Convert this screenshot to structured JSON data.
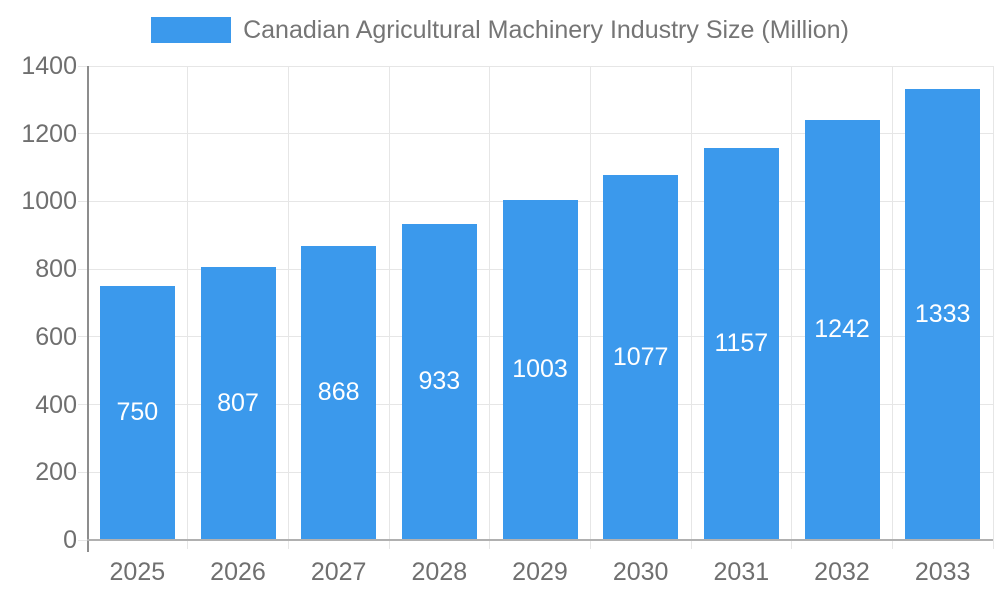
{
  "legend": {
    "label": "Canadian Agricultural Machinery Industry Size (Million)",
    "swatch_icon": "legend-color-swatch"
  },
  "chart_data": {
    "type": "bar",
    "title": "Canadian Agricultural Machinery Industry Size (Million)",
    "categories": [
      "2025",
      "2026",
      "2027",
      "2028",
      "2029",
      "2030",
      "2031",
      "2032",
      "2033"
    ],
    "values": [
      750,
      807,
      868,
      933,
      1003,
      1077,
      1157,
      1242,
      1333
    ],
    "series": [
      {
        "name": "Canadian Agricultural Machinery Industry Size (Million)",
        "values": [
          750,
          807,
          868,
          933,
          1003,
          1077,
          1157,
          1242,
          1333
        ]
      }
    ],
    "xlabel": "",
    "ylabel": "",
    "ylim": [
      0,
      1400
    ],
    "yticks": [
      0,
      200,
      400,
      600,
      800,
      1000,
      1200,
      1400
    ],
    "grid": true,
    "legend_position": "top",
    "value_labels": "inside-bar-centered-white",
    "colors": {
      "bar": "#3b99ec",
      "bar_value_text": "#ffffff",
      "axis_text": "#6f6f6f",
      "legend_text": "#757575",
      "gridline": "#e6e6e6",
      "y_axis_line": "#8d8d8d",
      "baseline": "#b0b0b0",
      "background": "#ffffff"
    }
  }
}
